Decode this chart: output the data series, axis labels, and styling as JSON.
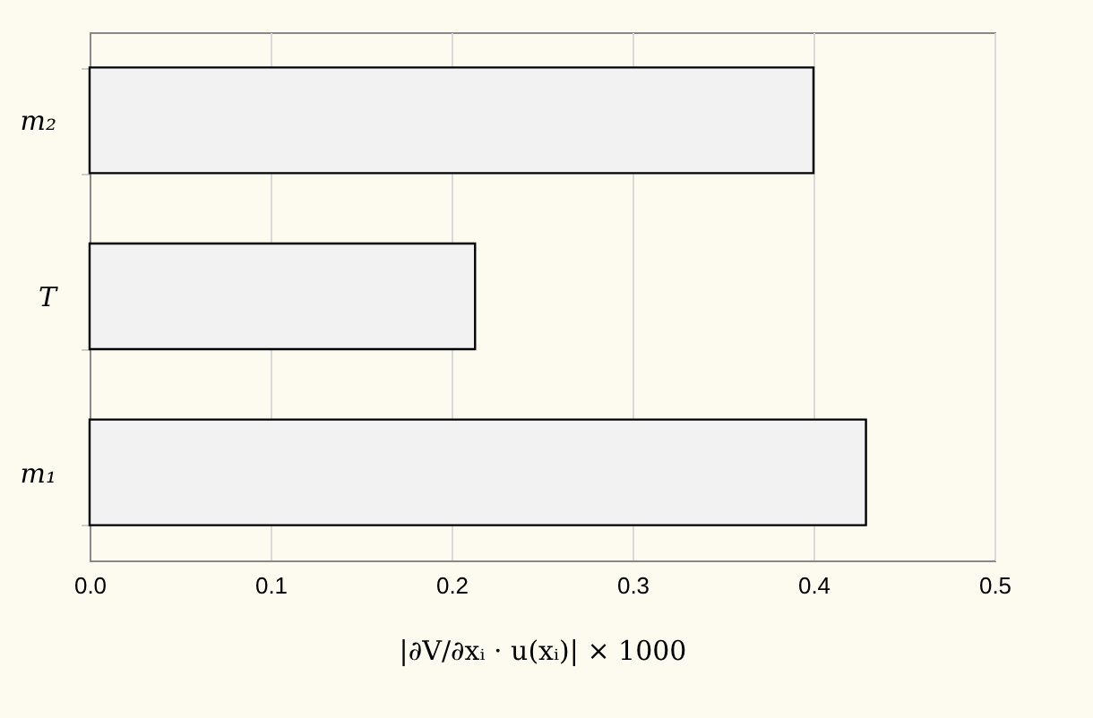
{
  "chart_data": {
    "type": "bar",
    "orientation": "horizontal",
    "categories": [
      "m₂",
      "T",
      "m₁"
    ],
    "values": [
      0.4,
      0.213,
      0.429
    ],
    "color": "#f2f2f2",
    "xlim": [
      0,
      0.5
    ],
    "xticks": [
      {
        "value": 0,
        "label": "0.0"
      },
      {
        "value": 0.1,
        "label": "0.1"
      },
      {
        "value": 0.2,
        "label": "0.2"
      },
      {
        "value": 0.3,
        "label": "0.3"
      },
      {
        "value": 0.4,
        "label": "0.4"
      },
      {
        "value": 0.5,
        "label": "0.5"
      }
    ],
    "xlabel": "|∂V/∂xᵢ · u(xᵢ)| × 1000",
    "grid": "x"
  }
}
